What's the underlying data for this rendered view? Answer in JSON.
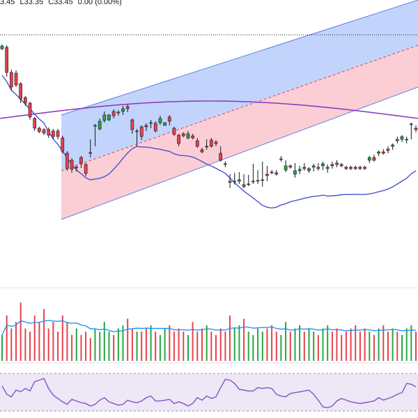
{
  "header": {
    "high_fragment": "3.45",
    "low": "L33.35",
    "close": "C33.45",
    "change": "0.00 (0.00%)"
  },
  "colors": {
    "up": "#26a641",
    "down": "#e5424d",
    "upper_channel": "#b9ccfb",
    "lower_channel": "#f9c6cd",
    "channel_line": "#5b7ee5",
    "ma_long": "#8e3dbf",
    "ma_short": "#4753cc",
    "volume_ma": "#2196f3",
    "rsi": "#7e57c2",
    "rsi_band": "#ede7f6"
  },
  "chart_data": [
    {
      "type": "candlestick",
      "ylim": [
        0,
        410
      ],
      "series": [
        {
          "name": "price",
          "values": [
            {
              "o": 340,
              "h": 346,
              "l": 338,
              "c": 344
            },
            {
              "o": 342,
              "h": 345,
              "l": 300,
              "c": 306
            },
            {
              "o": 306,
              "h": 310,
              "l": 280,
              "c": 285
            },
            {
              "o": 305,
              "h": 309,
              "l": 285,
              "c": 288
            },
            {
              "o": 290,
              "h": 292,
              "l": 262,
              "c": 268
            },
            {
              "o": 270,
              "h": 272,
              "l": 258,
              "c": 262
            },
            {
              "o": 262,
              "h": 264,
              "l": 238,
              "c": 242
            },
            {
              "o": 240,
              "h": 242,
              "l": 222,
              "c": 226
            },
            {
              "o": 226,
              "h": 228,
              "l": 219,
              "c": 221
            },
            {
              "o": 224,
              "h": 226,
              "l": 216,
              "c": 219
            },
            {
              "o": 224,
              "h": 227,
              "l": 212,
              "c": 216
            },
            {
              "o": 222,
              "h": 225,
              "l": 210,
              "c": 214
            },
            {
              "o": 222,
              "h": 225,
              "l": 210,
              "c": 214
            },
            {
              "o": 212,
              "h": 215,
              "l": 190,
              "c": 193
            },
            {
              "o": 190,
              "h": 193,
              "l": 165,
              "c": 168
            },
            {
              "o": 180,
              "h": 183,
              "l": 162,
              "c": 167
            },
            {
              "o": 170,
              "h": 173,
              "l": 164,
              "c": 170
            },
            {
              "o": 184,
              "h": 186,
              "l": 169,
              "c": 175
            },
            {
              "o": 174,
              "h": 176,
              "l": 157,
              "c": 161
            },
            {
              "o": 191,
              "h": 210,
              "l": 184,
              "c": 190
            },
            {
              "o": 230,
              "h": 232,
              "l": 200,
              "c": 230
            },
            {
              "o": 225,
              "h": 240,
              "l": 223,
              "c": 236
            },
            {
              "o": 237,
              "h": 250,
              "l": 234,
              "c": 245
            },
            {
              "o": 238,
              "h": 246,
              "l": 236,
              "c": 245
            },
            {
              "o": 250,
              "h": 253,
              "l": 240,
              "c": 244
            },
            {
              "o": 248,
              "h": 252,
              "l": 244,
              "c": 249
            },
            {
              "o": 250,
              "h": 258,
              "l": 245,
              "c": 254
            },
            {
              "o": 257,
              "h": 260,
              "l": 249,
              "c": 254
            },
            {
              "o": 238,
              "h": 240,
              "l": 218,
              "c": 224
            },
            {
              "o": 222,
              "h": 225,
              "l": 200,
              "c": 222
            },
            {
              "o": 228,
              "h": 230,
              "l": 209,
              "c": 214
            },
            {
              "o": 230,
              "h": 233,
              "l": 222,
              "c": 228
            },
            {
              "o": 233,
              "h": 238,
              "l": 226,
              "c": 234
            },
            {
              "o": 233,
              "h": 236,
              "l": 220,
              "c": 222
            },
            {
              "o": 234,
              "h": 244,
              "l": 231,
              "c": 240
            },
            {
              "o": 230,
              "h": 234,
              "l": 230,
              "c": 234
            },
            {
              "o": 242,
              "h": 245,
              "l": 230,
              "c": 236
            },
            {
              "o": 226,
              "h": 228,
              "l": 215,
              "c": 217
            },
            {
              "o": 216,
              "h": 218,
              "l": 200,
              "c": 204
            },
            {
              "o": 218,
              "h": 220,
              "l": 213,
              "c": 215
            },
            {
              "o": 212,
              "h": 222,
              "l": 210,
              "c": 218
            },
            {
              "o": 215,
              "h": 218,
              "l": 210,
              "c": 212
            },
            {
              "o": 208,
              "h": 212,
              "l": 198,
              "c": 200
            },
            {
              "o": 195,
              "h": 198,
              "l": 190,
              "c": 192
            },
            {
              "o": 200,
              "h": 210,
              "l": 195,
              "c": 200
            },
            {
              "o": 209,
              "h": 212,
              "l": 198,
              "c": 200
            },
            {
              "o": 206,
              "h": 209,
              "l": 200,
              "c": 204
            },
            {
              "o": 190,
              "h": 200,
              "l": 178,
              "c": 180
            },
            {
              "o": 175,
              "h": 178,
              "l": 170,
              "c": 174
            },
            {
              "o": 150,
              "h": 160,
              "l": 140,
              "c": 148
            },
            {
              "o": 150,
              "h": 162,
              "l": 145,
              "c": 150
            },
            {
              "o": 150,
              "h": 163,
              "l": 146,
              "c": 152
            },
            {
              "o": 145,
              "h": 160,
              "l": 140,
              "c": 142
            },
            {
              "o": 146,
              "h": 159,
              "l": 143,
              "c": 146
            },
            {
              "o": 150,
              "h": 175,
              "l": 146,
              "c": 150
            },
            {
              "o": 151,
              "h": 166,
              "l": 146,
              "c": 151
            },
            {
              "o": 152,
              "h": 178,
              "l": 142,
              "c": 152
            },
            {
              "o": 160,
              "h": 172,
              "l": 150,
              "c": 158
            },
            {
              "o": 163,
              "h": 166,
              "l": 160,
              "c": 162
            },
            {
              "o": 162,
              "h": 166,
              "l": 158,
              "c": 160
            },
            {
              "o": 182,
              "h": 186,
              "l": 178,
              "c": 182
            },
            {
              "o": 166,
              "h": 180,
              "l": 163,
              "c": 172
            },
            {
              "o": 172,
              "h": 174,
              "l": 168,
              "c": 170
            },
            {
              "o": 160,
              "h": 176,
              "l": 155,
              "c": 165
            },
            {
              "o": 165,
              "h": 172,
              "l": 160,
              "c": 167
            },
            {
              "o": 170,
              "h": 176,
              "l": 165,
              "c": 168
            },
            {
              "o": 165,
              "h": 170,
              "l": 162,
              "c": 168
            },
            {
              "o": 170,
              "h": 175,
              "l": 164,
              "c": 172
            },
            {
              "o": 170,
              "h": 176,
              "l": 165,
              "c": 168
            },
            {
              "o": 172,
              "h": 178,
              "l": 166,
              "c": 175
            },
            {
              "o": 168,
              "h": 174,
              "l": 162,
              "c": 170
            },
            {
              "o": 174,
              "h": 178,
              "l": 168,
              "c": 172
            },
            {
              "o": 176,
              "h": 180,
              "l": 170,
              "c": 174
            },
            {
              "o": 174,
              "h": 176,
              "l": 170,
              "c": 172
            },
            {
              "o": 170,
              "h": 172,
              "l": 166,
              "c": 168
            },
            {
              "o": 170,
              "h": 172,
              "l": 166,
              "c": 168
            },
            {
              "o": 170,
              "h": 172,
              "l": 166,
              "c": 168
            },
            {
              "o": 170,
              "h": 172,
              "l": 166,
              "c": 168
            },
            {
              "o": 170,
              "h": 172,
              "l": 166,
              "c": 168
            },
            {
              "o": 180,
              "h": 186,
              "l": 176,
              "c": 184
            },
            {
              "o": 184,
              "h": 188,
              "l": 178,
              "c": 180
            },
            {
              "o": 190,
              "h": 194,
              "l": 186,
              "c": 192
            },
            {
              "o": 192,
              "h": 196,
              "l": 188,
              "c": 190
            },
            {
              "o": 196,
              "h": 200,
              "l": 190,
              "c": 194
            },
            {
              "o": 200,
              "h": 204,
              "l": 195,
              "c": 202
            },
            {
              "o": 210,
              "h": 214,
              "l": 204,
              "c": 208
            },
            {
              "o": 210,
              "h": 216,
              "l": 206,
              "c": 214
            },
            {
              "o": 210,
              "h": 214,
              "l": 204,
              "c": 210
            },
            {
              "o": 232,
              "h": 234,
              "l": 210,
              "c": 232
            },
            {
              "o": 226,
              "h": 230,
              "l": 220,
              "c": 224
            }
          ]
        }
      ]
    },
    {
      "type": "bar",
      "title": "",
      "series": [
        {
          "name": "volume",
          "values": [
            8,
            14,
            10,
            12,
            18,
            10,
            9,
            14,
            12,
            16,
            10,
            12,
            9,
            14,
            12,
            8,
            10,
            8,
            9,
            7,
            10,
            9,
            12,
            9,
            8,
            10,
            11,
            13,
            10,
            9,
            9,
            10,
            11,
            9,
            8,
            10,
            11,
            9,
            10,
            9,
            8,
            12,
            9,
            10,
            11,
            9,
            8,
            10,
            9,
            14,
            10,
            11,
            13,
            9,
            8,
            10,
            9,
            10,
            11,
            9,
            8,
            12,
            9,
            10,
            11,
            9,
            10,
            9,
            8,
            10,
            11,
            9,
            10,
            8,
            9,
            10,
            11,
            9,
            10,
            9,
            8,
            10,
            11,
            9,
            10,
            9,
            8,
            10,
            11,
            9
          ]
        }
      ]
    },
    {
      "type": "line",
      "title": "",
      "series": [
        {
          "name": "rsi",
          "values": [
            55,
            45,
            42,
            50,
            48,
            52,
            49,
            60,
            62,
            64,
            52,
            44,
            40,
            36,
            33,
            39,
            37,
            35,
            34,
            31,
            33,
            38,
            41,
            36,
            34,
            32,
            33,
            38,
            36,
            35,
            37,
            41,
            43,
            37,
            37,
            38,
            39,
            34,
            36,
            34,
            31,
            34,
            41,
            38,
            43,
            40,
            42,
            53,
            63,
            62,
            58,
            51,
            50,
            49,
            49,
            53,
            52,
            53,
            52,
            45,
            43,
            42,
            46,
            47,
            48,
            49,
            50,
            45,
            38,
            30,
            29,
            31,
            37,
            40,
            38,
            36,
            35,
            34,
            35,
            36,
            37,
            41,
            38,
            40,
            42,
            45,
            47,
            58,
            57,
            54
          ]
        }
      ]
    }
  ]
}
